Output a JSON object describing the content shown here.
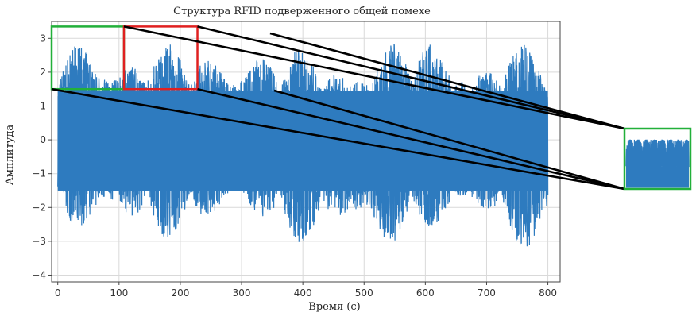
{
  "chart_data": {
    "type": "line",
    "title": "Структура RFID подверженного общей помехе",
    "xlabel": "Время (с)",
    "ylabel": "Амплитуда",
    "xlim": [
      -10,
      820
    ],
    "ylim": [
      -4.2,
      3.5
    ],
    "xticks": [
      0,
      100,
      200,
      300,
      400,
      500,
      600,
      700,
      800
    ],
    "yticks": [
      -4,
      -3,
      -2,
      -1,
      0,
      1,
      2,
      3
    ],
    "grid": true,
    "series": [
      {
        "color": "#2e7bbf",
        "x": [
          0,
          800
        ],
        "envelope_upper": [
          2.9,
          3.2,
          2.8,
          3.0,
          2.7,
          2.9,
          3.1,
          2.8,
          2.9
        ],
        "envelope_lower": [
          -2.6,
          -3.3,
          -2.9,
          -2.7,
          -3.1,
          -3.6,
          -2.8,
          -2.9,
          -3.5
        ]
      }
    ],
    "annotations": {
      "zoom_boxes": [
        {
          "color": "#22b03a",
          "x_range": [
            -10,
            108
          ],
          "y_range": [
            1.5,
            3.35
          ]
        },
        {
          "color": "#e02020",
          "x_range": [
            108,
            228
          ],
          "y_range": [
            1.5,
            3.35
          ]
        }
      ],
      "inset_border_color": "#22b03a",
      "connector_color": "#000000"
    }
  }
}
